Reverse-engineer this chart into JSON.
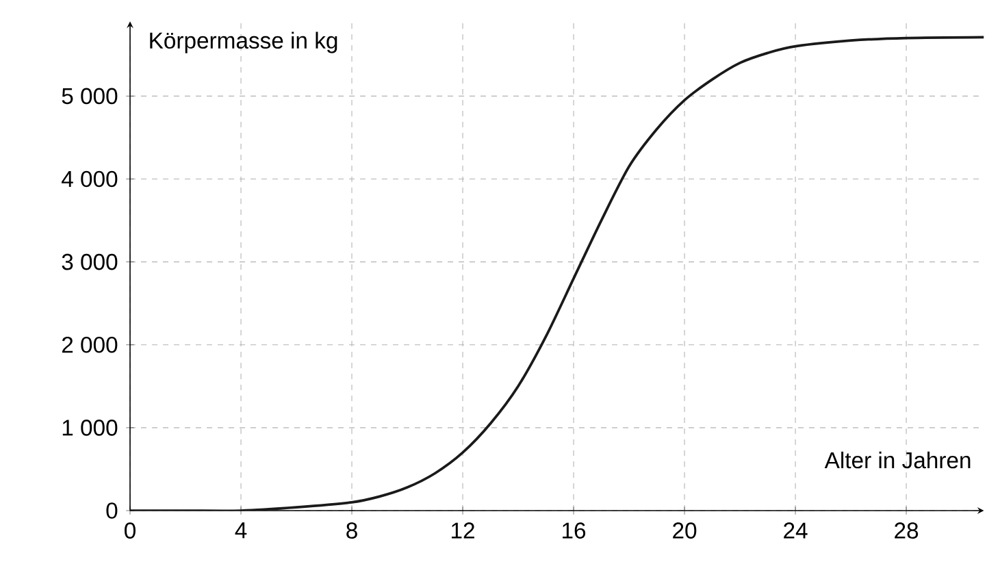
{
  "chart_data": {
    "type": "line",
    "xlabel": "Alter in Jahren",
    "ylabel": "Körpermasse in kg",
    "x": [
      0,
      2,
      4,
      6,
      8,
      9,
      10,
      11,
      12,
      13,
      14,
      15,
      16,
      17,
      18,
      19,
      20,
      21,
      22,
      23,
      24,
      26,
      28,
      30.8
    ],
    "series": [
      {
        "color": "#1a1a1a",
        "values": [
          0,
          0,
          0,
          40,
          100,
          170,
          280,
          450,
          700,
          1050,
          1500,
          2100,
          2800,
          3500,
          4150,
          4600,
          4950,
          5200,
          5400,
          5520,
          5600,
          5670,
          5700,
          5710
        ]
      }
    ],
    "xlim": [
      0,
      30.8
    ],
    "ylim": [
      0,
      5900
    ],
    "xticks": [
      0,
      4,
      8,
      12,
      16,
      20,
      24,
      28
    ],
    "yticks": [
      0,
      {
        "value": 1000,
        "label": "1 000"
      },
      {
        "value": 2000,
        "label": "2 000"
      },
      {
        "value": 3000,
        "label": "3 000"
      },
      {
        "value": 4000,
        "label": "4 000"
      },
      {
        "value": 5000,
        "label": "5 000"
      }
    ],
    "grid": true,
    "marker": "none",
    "line_style": "solid"
  }
}
